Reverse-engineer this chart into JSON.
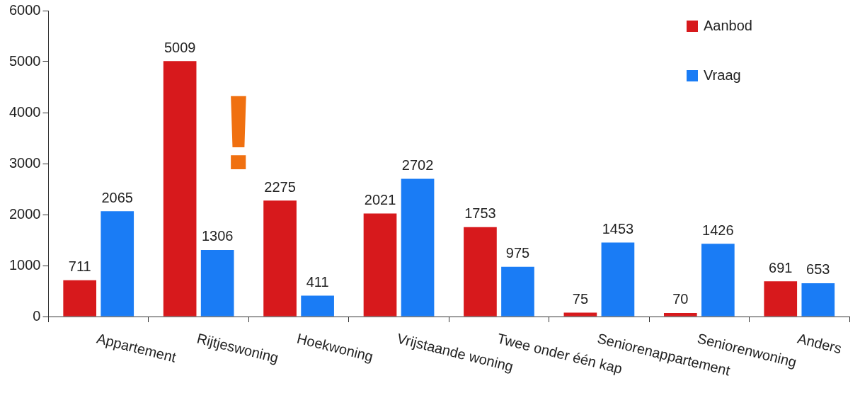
{
  "chart_data": {
    "type": "bar",
    "categories": [
      "Appartement",
      "Rijtjeswoning",
      "Hoekwoning",
      "Vrijstaande woning",
      "Twee onder één kap",
      "Seniorenappartement",
      "Seniorenwoning",
      "Anders"
    ],
    "series": [
      {
        "name": "Aanbod",
        "color": "#d7191c",
        "values": [
          711,
          5009,
          2275,
          2021,
          1753,
          75,
          70,
          691
        ]
      },
      {
        "name": "Vraag",
        "color": "#1a7cf5",
        "values": [
          2065,
          1306,
          411,
          2702,
          975,
          1453,
          1426,
          653
        ]
      }
    ],
    "ylim": [
      0,
      6000
    ],
    "yticks": [
      0,
      1000,
      2000,
      3000,
      4000,
      5000,
      6000
    ],
    "annotations": [
      "!"
    ],
    "grid": false,
    "legend": "top right",
    "data_labels": true
  }
}
